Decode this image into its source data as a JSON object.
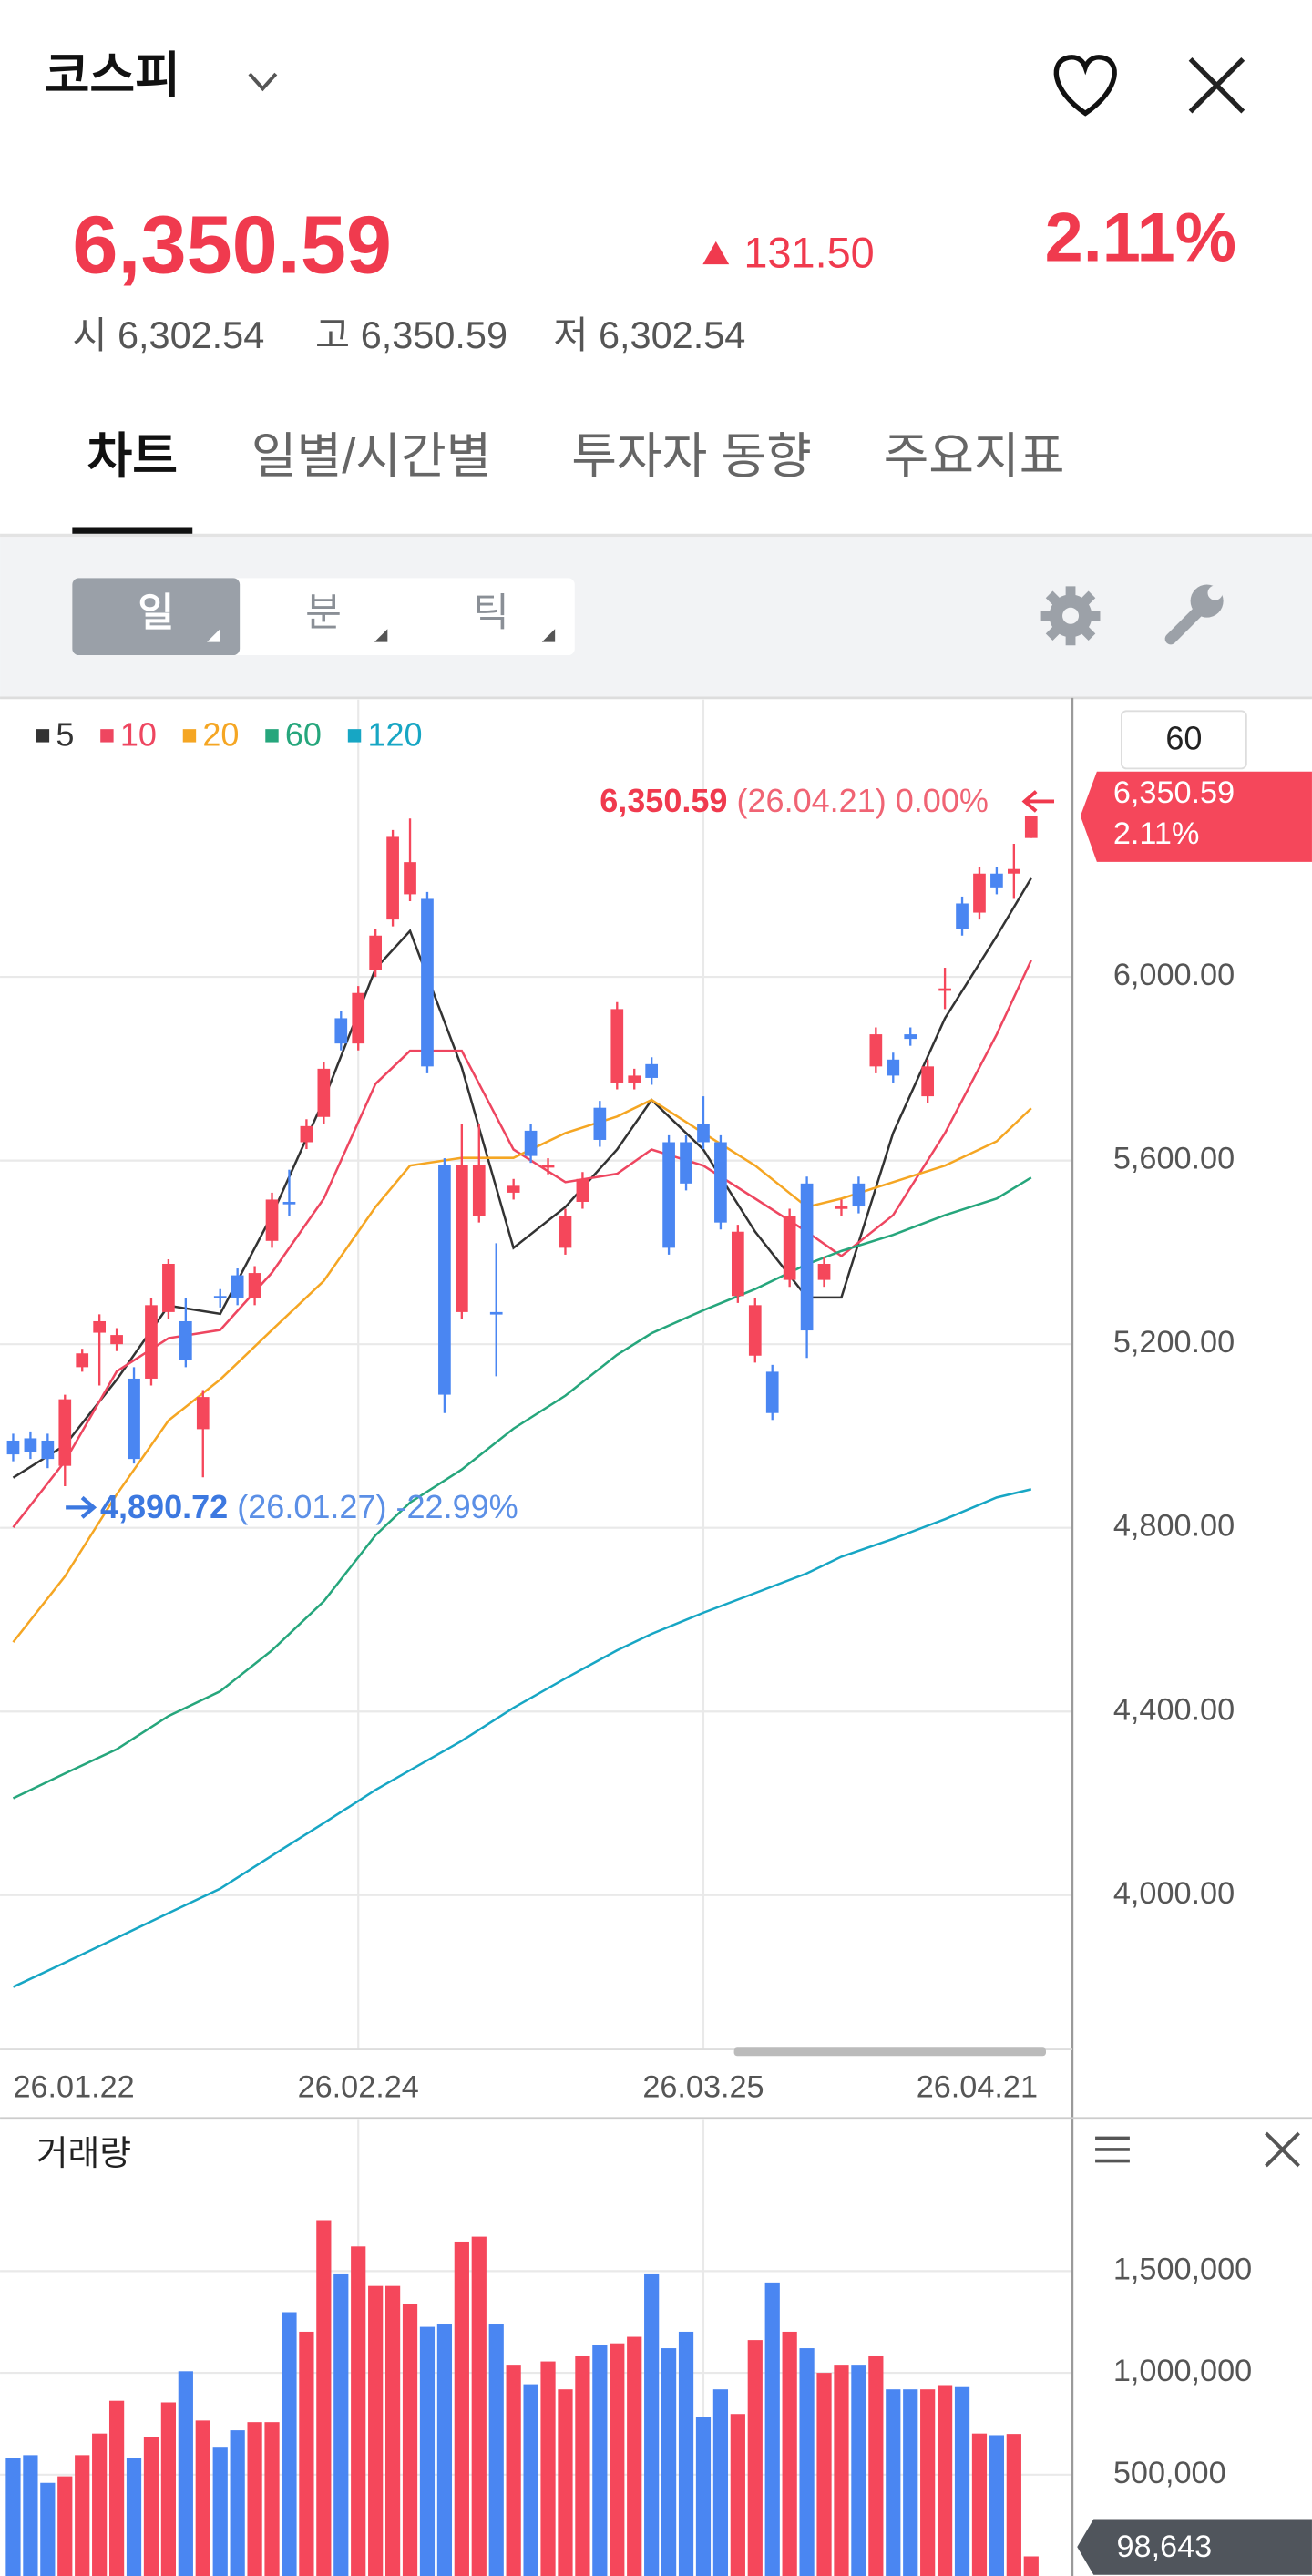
{
  "header": {
    "title": "코스피",
    "price": "6,350.59",
    "change": "131.50",
    "change_pct": "2.11%",
    "open_label": "시",
    "open": "6,302.54",
    "high_label": "고",
    "high": "6,350.59",
    "low_label": "저",
    "low": "6,302.54"
  },
  "tabs": [
    "차트",
    "일별/시간별",
    "투자자 동향",
    "주요지표"
  ],
  "active_tab": 0,
  "period_buttons": [
    "일",
    "분",
    "틱"
  ],
  "active_period": 0,
  "chart_data": [
    {
      "type": "candlestick",
      "categories": [
        "26.01.22",
        null,
        null,
        null,
        null,
        null,
        null,
        null,
        null,
        null,
        null,
        null,
        null,
        null,
        null,
        null,
        null,
        null,
        null,
        null,
        "26.02.24",
        null,
        null,
        null,
        null,
        null,
        null,
        null,
        null,
        null,
        null,
        null,
        null,
        null,
        null,
        null,
        null,
        null,
        null,
        null,
        "26.03.25",
        null,
        null,
        null,
        null,
        null,
        null,
        null,
        null,
        null,
        null,
        null,
        null,
        null,
        null,
        null,
        null,
        null,
        null,
        "26.04.21"
      ],
      "open": [
        4990,
        4995,
        4990,
        4935,
        5150,
        5225,
        5200,
        5125,
        5125,
        5270,
        5250,
        5015,
        5305,
        5350,
        5300,
        5425,
        5510,
        5640,
        5695,
        5910,
        5855,
        6015,
        6125,
        6180,
        6170,
        5590,
        5270,
        5480,
        5270,
        5530,
        5665,
        5585,
        5410,
        5510,
        5715,
        5770,
        5770,
        5810,
        5640,
        5640,
        5680,
        5640,
        5305,
        5175,
        5140,
        5340,
        5550,
        5340,
        5495,
        5550,
        5805,
        5820,
        5875,
        5740,
        5970,
        6160,
        6140,
        6225,
        6225,
        6302.54
      ],
      "high": [
        5005,
        5010,
        5005,
        5090,
        5190,
        5265,
        5235,
        5150,
        5300,
        5385,
        5300,
        5100,
        5320,
        5365,
        5370,
        5530,
        5580,
        5690,
        5815,
        5925,
        5980,
        6105,
        6320,
        6345,
        6185,
        5605,
        5680,
        5680,
        5420,
        5560,
        5680,
        5605,
        5495,
        5575,
        5730,
        5945,
        5800,
        5825,
        5655,
        5655,
        5740,
        5655,
        5460,
        5300,
        5155,
        5495,
        5565,
        5390,
        5515,
        5565,
        5890,
        5835,
        5890,
        5820,
        6020,
        6175,
        6240,
        6240,
        6290,
        6350.59
      ],
      "low": [
        4945,
        4950,
        4930,
        4890.72,
        5140,
        5110,
        5185,
        4940,
        5110,
        5255,
        5150,
        4910,
        5280,
        5285,
        5285,
        5410,
        5480,
        5625,
        5680,
        5840,
        5840,
        6000,
        6110,
        6165,
        5790,
        5050,
        5255,
        5465,
        5130,
        5515,
        5595,
        5570,
        5395,
        5495,
        5630,
        5755,
        5755,
        5765,
        5395,
        5535,
        5625,
        5450,
        5290,
        5160,
        5035,
        5325,
        5170,
        5325,
        5480,
        5485,
        5790,
        5770,
        5850,
        5725,
        5930,
        6090,
        6125,
        6180,
        6170,
        6302.54
      ],
      "close": [
        4960,
        4965,
        4950,
        5080,
        5180,
        5250,
        5220,
        4950,
        5285,
        5375,
        5165,
        5085,
        5300,
        5300,
        5355,
        5515,
        5505,
        5675,
        5800,
        5855,
        5965,
        6090,
        6305,
        6250,
        5805,
        5090,
        5590,
        5590,
        5265,
        5545,
        5610,
        5590,
        5480,
        5560,
        5645,
        5930,
        5785,
        5780,
        5410,
        5550,
        5640,
        5465,
        5445,
        5285,
        5050,
        5480,
        5230,
        5375,
        5500,
        5500,
        5875,
        5785,
        5865,
        5805,
        5975,
        6105,
        6225,
        6195,
        6235,
        6350.59
      ],
      "up_color": "#f5475b",
      "down_color": "#4a86f2",
      "ylim": [
        3664,
        6597
      ],
      "yticks": [
        {
          "value": 4000,
          "label": "4,000.00"
        },
        {
          "value": 4400,
          "label": "4,400.00"
        },
        {
          "value": 4800,
          "label": "4,800.00"
        },
        {
          "value": 5200,
          "label": "5,200.00"
        },
        {
          "value": 5600,
          "label": "5,600.00"
        },
        {
          "value": 6000,
          "label": "6,000.00"
        }
      ],
      "grid": true,
      "ma_box": "60",
      "lines": [
        {
          "name": "5",
          "color": "#333333",
          "x": [
            0,
            3,
            6,
            9,
            12,
            15,
            18,
            21,
            23,
            26,
            29,
            32,
            35,
            37,
            40,
            43,
            46,
            48,
            51,
            54,
            57,
            59
          ],
          "values": [
            4909,
            4980,
            5123,
            5284,
            5266,
            5481,
            5732,
            6018,
            6100,
            5803,
            5410,
            5499,
            5624,
            5732,
            5624,
            5445,
            5302,
            5302,
            5660,
            5910,
            6089,
            6215
          ]
        },
        {
          "name": "10",
          "color": "#ee4660",
          "x": [
            0,
            3,
            6,
            9,
            12,
            15,
            18,
            21,
            23,
            26,
            29,
            32,
            35,
            37,
            40,
            43,
            46,
            48,
            51,
            54,
            57,
            59
          ],
          "values": [
            4801,
            4945,
            5141,
            5213,
            5231,
            5356,
            5517,
            5767,
            5839,
            5839,
            5624,
            5553,
            5571,
            5624,
            5589,
            5517,
            5445,
            5392,
            5481,
            5660,
            5875,
            6036
          ]
        },
        {
          "name": "20",
          "color": "#f5a623",
          "x": [
            0,
            3,
            6,
            9,
            12,
            15,
            18,
            21,
            23,
            26,
            29,
            32,
            35,
            37,
            40,
            43,
            46,
            48,
            51,
            54,
            57,
            59
          ],
          "values": [
            4551,
            4694,
            4873,
            5034,
            5123,
            5231,
            5338,
            5499,
            5589,
            5606,
            5606,
            5660,
            5696,
            5732,
            5660,
            5589,
            5499,
            5517,
            5553,
            5589,
            5642,
            5714
          ]
        },
        {
          "name": "60",
          "color": "#26a67c",
          "x": [
            0,
            3,
            6,
            9,
            12,
            15,
            18,
            21,
            23,
            26,
            29,
            32,
            35,
            37,
            40,
            43,
            46,
            48,
            51,
            54,
            57,
            59
          ],
          "values": [
            4211,
            4265,
            4318,
            4390,
            4444,
            4533,
            4640,
            4784,
            4855,
            4927,
            5016,
            5088,
            5177,
            5224,
            5274,
            5320,
            5374,
            5403,
            5438,
            5481,
            5517,
            5563
          ]
        },
        {
          "name": "120",
          "color": "#17a6c4",
          "x": [
            0,
            3,
            6,
            9,
            12,
            15,
            18,
            21,
            23,
            26,
            29,
            32,
            35,
            37,
            40,
            43,
            46,
            48,
            51,
            54,
            57,
            59
          ],
          "values": [
            3800,
            3853,
            3907,
            3961,
            4014,
            4086,
            4157,
            4229,
            4272,
            4336,
            4408,
            4472,
            4533,
            4569,
            4615,
            4658,
            4701,
            4737,
            4776,
            4819,
            4866,
            4884
          ]
        }
      ],
      "max_annotation": {
        "value_text": "6,350.59",
        "detail": "(26.04.21) 0.00%"
      },
      "min_annotation": {
        "value_text": "4,890.72",
        "detail": "(26.01.27) -22.99%"
      }
    },
    {
      "type": "bar",
      "title": "거래량",
      "values": [
        580000,
        596000,
        460000,
        492000,
        596000,
        702000,
        863000,
        580000,
        685000,
        855000,
        1008000,
        766000,
        637000,
        718000,
        758000,
        758000,
        1298000,
        1202000,
        1750000,
        1484000,
        1621000,
        1427000,
        1427000,
        1339000,
        1226000,
        1242000,
        1645000,
        1669000,
        1242000,
        1040000,
        944000,
        1056000,
        919000,
        1081000,
        1137000,
        1145000,
        1177000,
        1484000,
        1121000,
        1202000,
        782000,
        919000,
        798000,
        1161000,
        1444000,
        1202000,
        1121000,
        1000000,
        1040000,
        1040000,
        1081000,
        919000,
        919000,
        919000,
        940000,
        930000,
        702000,
        694000,
        700000,
        98643
      ],
      "value_labels": [
        null,
        null,
        null,
        null,
        null,
        null,
        null,
        null,
        null,
        null,
        null,
        null,
        null,
        null,
        null,
        null,
        null,
        null,
        null,
        null,
        null,
        null,
        null,
        null,
        null,
        null,
        null,
        null,
        null,
        null,
        null,
        null,
        null,
        null,
        null,
        null,
        null,
        null,
        null,
        null,
        null,
        null,
        null,
        null,
        null,
        null,
        null,
        null,
        null,
        null,
        null,
        null,
        null,
        null,
        null,
        null,
        null,
        null,
        null,
        "98,643"
      ],
      "ylim": [
        0,
        2234000
      ],
      "yticks": [
        {
          "value": 500000,
          "label": "500,000"
        },
        {
          "value": 1000000,
          "label": "1,000,000"
        },
        {
          "value": 1500000,
          "label": "1,500,000"
        }
      ],
      "grid": true
    }
  ]
}
